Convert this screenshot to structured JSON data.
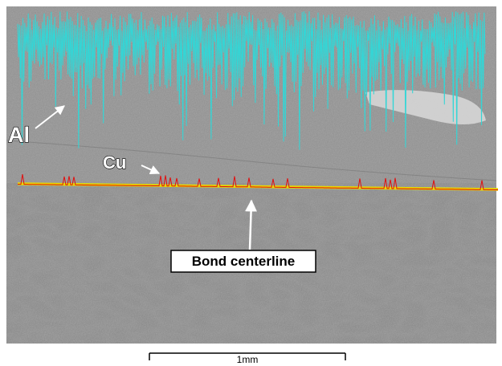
{
  "labels": {
    "al": "Al",
    "cu": "Cu",
    "bond": "Bond centerline"
  },
  "scale_bar": {
    "label": "1mm"
  }
}
